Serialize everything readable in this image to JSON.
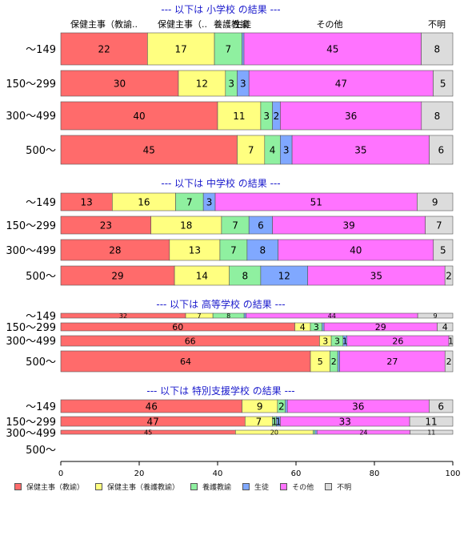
{
  "chart_data": {
    "type": "bar",
    "orientation": "horizontal-stacked",
    "xlim": [
      0,
      100
    ],
    "x_ticks": [
      "0",
      "20",
      "40",
      "60",
      "80",
      "100"
    ],
    "legend": {
      "placement": "bottom",
      "entries": [
        "保健主事（教諭）",
        "保健主事（養護教諭）",
        "養護教諭",
        "生徒",
        "その他",
        "不明"
      ]
    },
    "colors": [
      "#ff6b6b",
      "#ffff80",
      "#8ff0a0",
      "#80a8ff",
      "#ff73ff",
      "#dcdcdc"
    ],
    "column_headers": [
      "保健主事（教諭..",
      "保健主事（..",
      "養護教諭",
      "生徒",
      "その他",
      "不明"
    ],
    "panels": [
      {
        "title": "--- 以下は 小学校 の結果 ---",
        "categories": [
          "～149",
          "150～299",
          "300～499",
          "500～"
        ],
        "rows": [
          [
            22,
            17,
            7,
            0.5,
            45,
            8
          ],
          [
            30,
            12,
            3,
            3,
            47,
            5
          ],
          [
            40,
            11,
            3,
            2,
            36,
            8
          ],
          [
            45,
            7,
            4,
            3,
            35,
            6
          ]
        ],
        "labels": [
          [
            "22",
            "17",
            "7",
            "",
            "45",
            "8"
          ],
          [
            "30",
            "12",
            "3",
            "3",
            "47",
            "5"
          ],
          [
            "40",
            "11",
            "3",
            "2",
            "36",
            "8"
          ],
          [
            "45",
            "7",
            "4",
            "3",
            "35",
            "6"
          ]
        ]
      },
      {
        "title": "--- 以下は 中学校 の結果 ---",
        "categories": [
          "～149",
          "150～299",
          "300～499",
          "500～"
        ],
        "rows": [
          [
            13,
            16,
            7,
            3,
            51,
            9
          ],
          [
            23,
            18,
            7,
            6,
            39,
            7
          ],
          [
            28,
            13,
            7,
            8,
            40,
            5
          ],
          [
            29,
            14,
            8,
            12,
            35,
            2
          ]
        ],
        "labels": [
          [
            "13",
            "16",
            "7",
            "3",
            "51",
            "9"
          ],
          [
            "23",
            "18",
            "7",
            "6",
            "39",
            "7"
          ],
          [
            "28",
            "13",
            "7",
            "8",
            "40",
            "5"
          ],
          [
            "29",
            "14",
            "8",
            "12",
            "35",
            "2"
          ]
        ]
      },
      {
        "title": "--- 以下は 高等学校 の結果 ---",
        "categories": [
          "～149",
          "150～299",
          "300～499",
          "500～"
        ],
        "rows": [
          [
            32,
            7,
            8,
            0.5,
            44,
            9
          ],
          [
            60,
            4,
            3,
            0.5,
            29,
            4
          ],
          [
            66,
            3,
            3,
            1,
            26,
            1
          ],
          [
            64,
            5,
            2,
            0.5,
            27,
            2
          ]
        ],
        "labels": [
          [
            "32",
            "7",
            "8",
            "",
            "44",
            "9"
          ],
          [
            "60",
            "4",
            "3",
            "",
            "29",
            "4"
          ],
          [
            "66",
            "3",
            "3",
            "1",
            "26",
            "1"
          ],
          [
            "64",
            "5",
            "2",
            "",
            "27",
            "2"
          ]
        ]
      },
      {
        "title": "--- 以下は 特別支援学校 の結果 ---",
        "categories": [
          "～149",
          "150～299",
          "300～499",
          "500～"
        ],
        "rows": [
          [
            46,
            9,
            2,
            0.5,
            36,
            6
          ],
          [
            47,
            7,
            1,
            1,
            33,
            11
          ],
          [
            45,
            20,
            0.5,
            0.5,
            24,
            11
          ],
          null
        ],
        "labels": [
          [
            "46",
            "9",
            "2",
            "",
            "36",
            "6"
          ],
          [
            "47",
            "7",
            "1",
            "1",
            "33",
            "11"
          ],
          [
            "45",
            "20",
            "",
            "",
            "24",
            "11"
          ],
          null
        ]
      }
    ]
  }
}
